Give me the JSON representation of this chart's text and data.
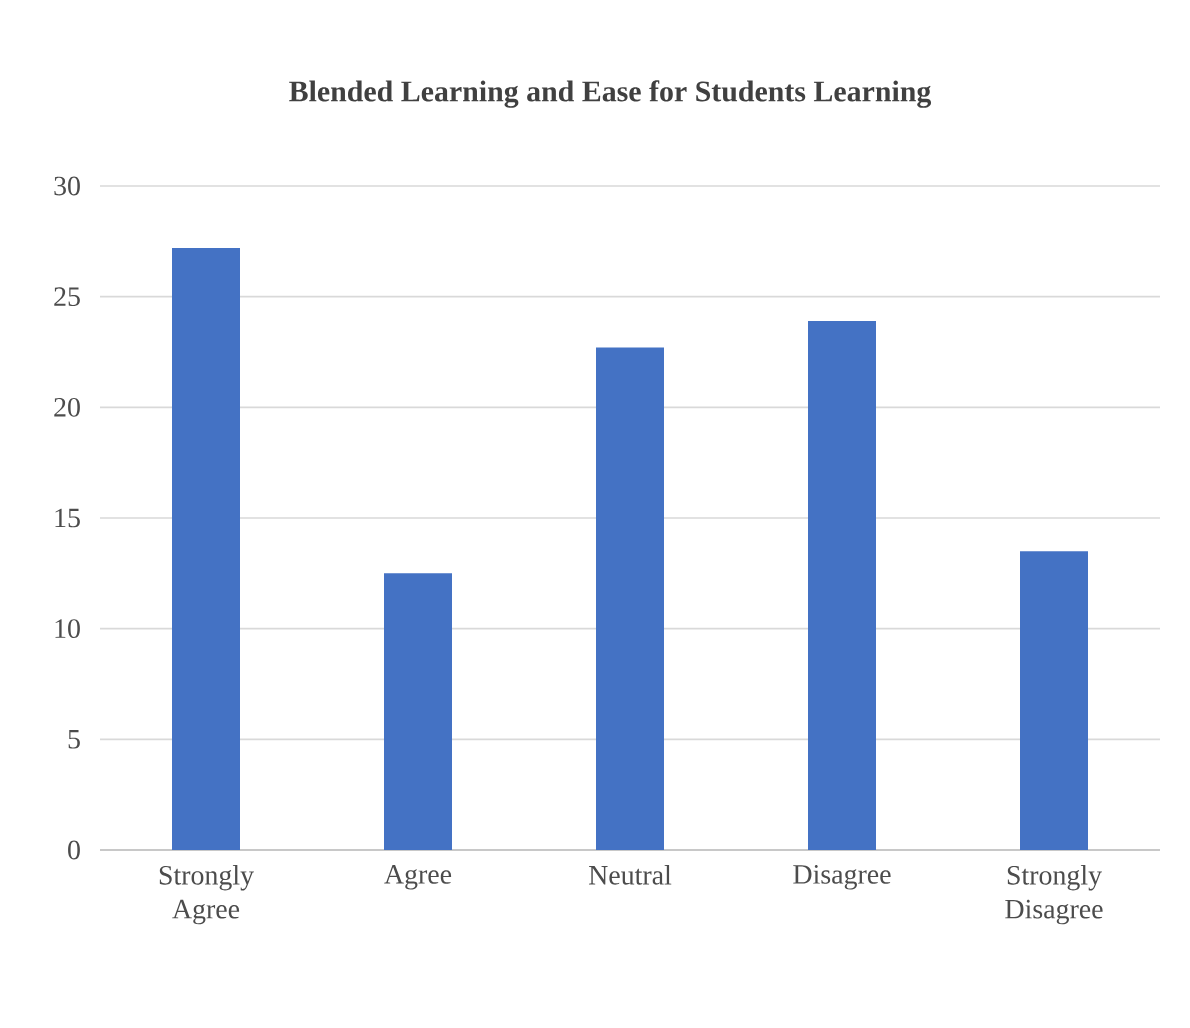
{
  "chart_data": {
    "type": "bar",
    "title": "Blended Learning and Ease for Students Learning",
    "categories": [
      "Strongly Agree",
      "Agree",
      "Neutral",
      "Disagree",
      "Strongly Disagree"
    ],
    "values": [
      27.2,
      12.5,
      22.7,
      23.9,
      13.5
    ],
    "color": "#4472c4",
    "ylim": [
      0,
      30
    ],
    "yticks": [
      0,
      5,
      10,
      15,
      20,
      25,
      30
    ],
    "grid": "y"
  }
}
